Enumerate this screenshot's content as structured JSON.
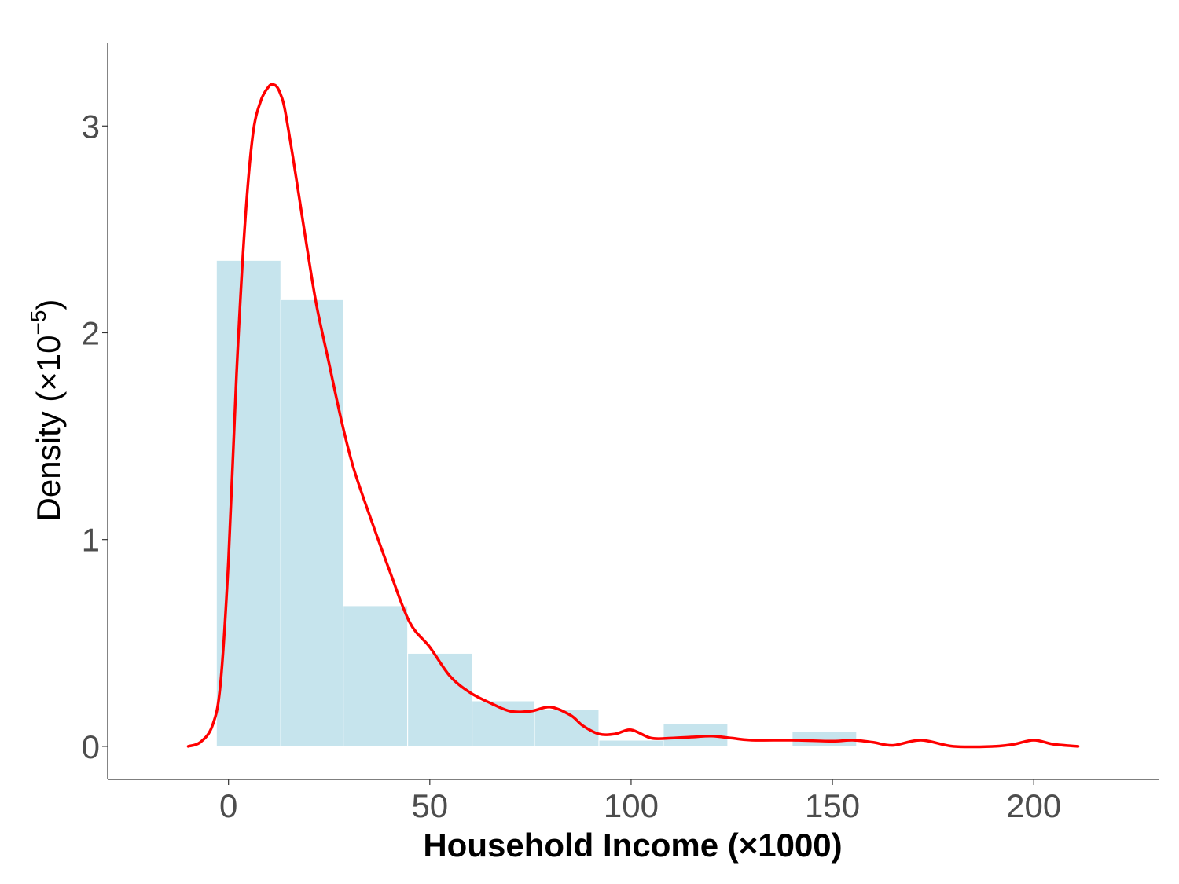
{
  "chart_data": {
    "type": "bar",
    "title": "",
    "xlabel": "Household Income (×1000)",
    "ylabel_main": "Density (×10",
    "ylabel_sup": "−5",
    "ylabel_close": ")",
    "xlim": [
      -30,
      231
    ],
    "ylim": [
      -0.16,
      3.4
    ],
    "x_ticks": [
      0,
      50,
      100,
      150,
      200
    ],
    "y_ticks": [
      0,
      1,
      2,
      3
    ],
    "grid": false,
    "histogram": {
      "bin_edges": [
        -3,
        13,
        28.5,
        44.5,
        60.5,
        76,
        92,
        108,
        124,
        140,
        156
      ],
      "density": [
        2.35,
        2.16,
        0.68,
        0.45,
        0.22,
        0.18,
        0.03,
        0.11,
        0.0,
        0.07
      ],
      "color": "#c6e4ed"
    },
    "density_curve": {
      "color": "#ff0000",
      "x": [
        -10,
        -7,
        -4,
        -2,
        0,
        2,
        4,
        6,
        8,
        10,
        11,
        12,
        13,
        14,
        16,
        18,
        20,
        22,
        25,
        28,
        31,
        35,
        40,
        45,
        50,
        55,
        60,
        65,
        70,
        75,
        80,
        85,
        88,
        92,
        96,
        100,
        105,
        110,
        115,
        120,
        125,
        130,
        140,
        150,
        155,
        160,
        165,
        172,
        180,
        190,
        195,
        200,
        205,
        211
      ],
      "y": [
        0.0,
        0.02,
        0.1,
        0.3,
        0.9,
        1.8,
        2.5,
        2.95,
        3.12,
        3.19,
        3.2,
        3.19,
        3.15,
        3.08,
        2.85,
        2.6,
        2.35,
        2.12,
        1.85,
        1.58,
        1.35,
        1.12,
        0.85,
        0.6,
        0.48,
        0.34,
        0.26,
        0.21,
        0.17,
        0.17,
        0.19,
        0.15,
        0.1,
        0.06,
        0.06,
        0.08,
        0.04,
        0.04,
        0.045,
        0.05,
        0.04,
        0.03,
        0.03,
        0.025,
        0.03,
        0.02,
        0.005,
        0.03,
        0.0,
        0.0,
        0.01,
        0.03,
        0.01,
        0.0
      ]
    }
  }
}
